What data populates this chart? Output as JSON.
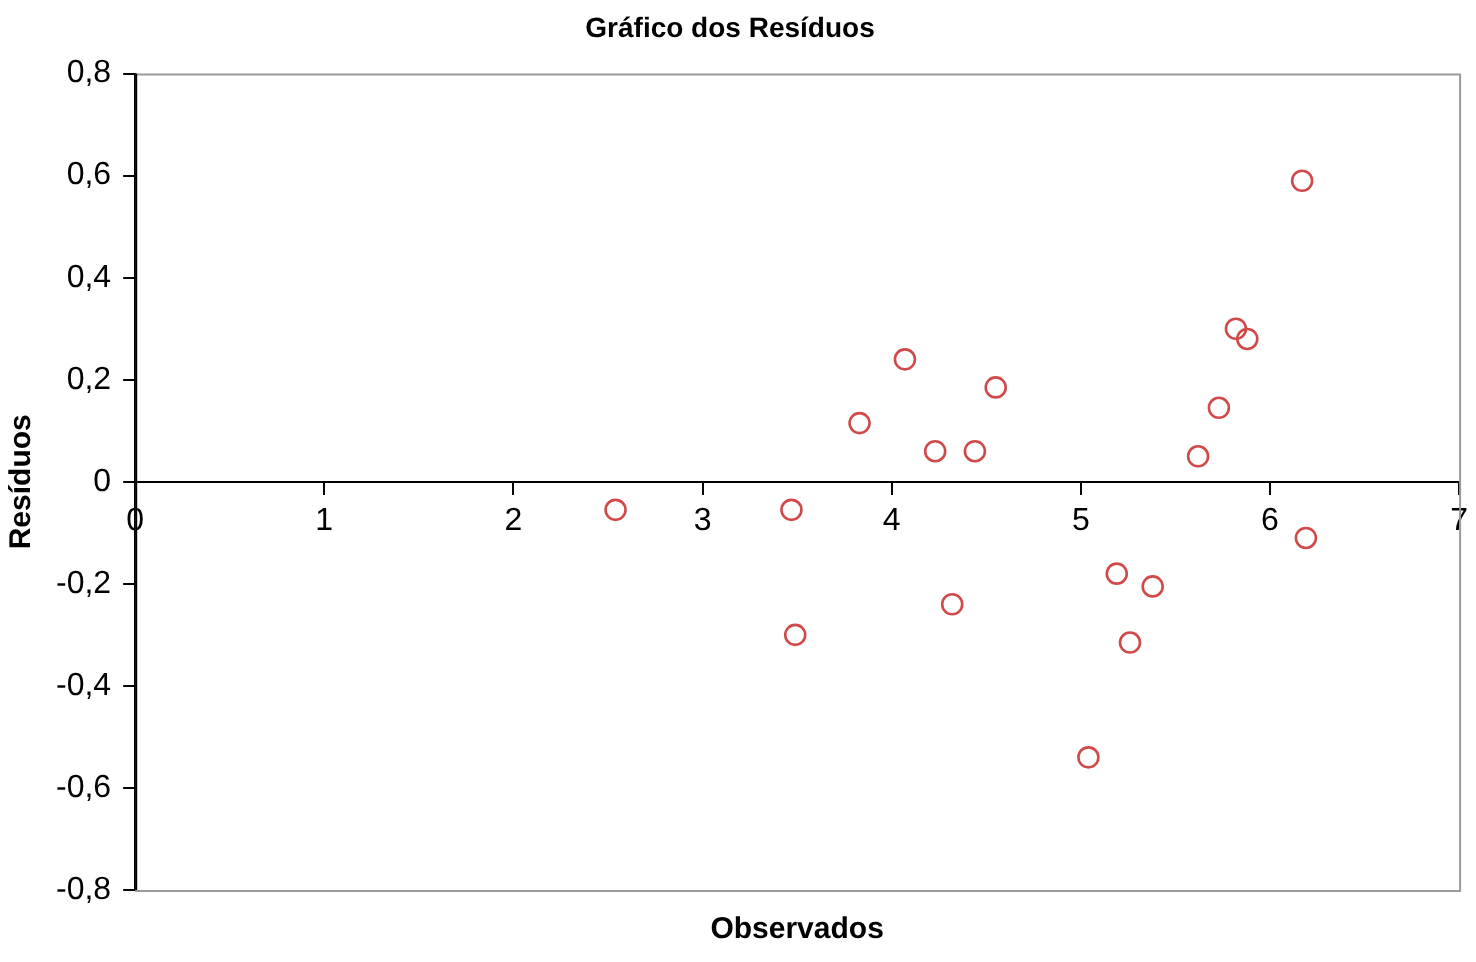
{
  "chart_data": {
    "type": "scatter",
    "title": "Gráfico dos Resíduos",
    "xlabel": "Observados",
    "ylabel": "Resíduos",
    "x": [
      2.54,
      3.47,
      3.49,
      3.83,
      4.07,
      4.23,
      4.44,
      4.55,
      4.32,
      5.04,
      5.19,
      5.38,
      5.26,
      5.62,
      5.73,
      5.82,
      5.88,
      6.17,
      6.19
    ],
    "series": [
      {
        "color": "#d04a4a",
        "values": [
          -0.055,
          -0.055,
          -0.3,
          0.115,
          0.24,
          0.06,
          0.06,
          0.185,
          -0.24,
          -0.54,
          -0.18,
          -0.205,
          -0.315,
          0.05,
          0.145,
          0.3,
          0.28,
          0.59,
          -0.11
        ]
      }
    ],
    "xlim": [
      0,
      7
    ],
    "xticks": [
      0,
      1,
      2,
      3,
      4,
      5,
      6,
      7
    ],
    "ylim": [
      -0.8,
      0.8
    ],
    "yticks": [
      {
        "value": -0.8,
        "label": "-0,8"
      },
      {
        "value": -0.6,
        "label": "-0,6"
      },
      {
        "value": -0.4,
        "label": "-0,4"
      },
      {
        "value": -0.2,
        "label": "-0,2"
      },
      0,
      {
        "value": 0.2,
        "label": "0,2"
      },
      {
        "value": 0.4,
        "label": "0,4"
      },
      {
        "value": 0.6,
        "label": "0,6"
      },
      {
        "value": 0.8,
        "label": "0,8"
      }
    ],
    "grid": false,
    "legend": false,
    "marker": "circle"
  }
}
